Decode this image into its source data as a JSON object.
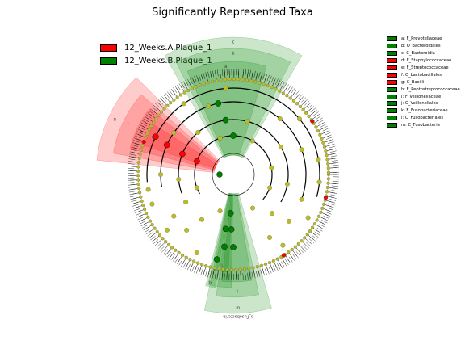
{
  "title": "Significantly Represented Taxa",
  "colors": {
    "enriched_a": "#ff0000",
    "enriched_b": "#008000",
    "neutral_node": "#bcbd22"
  },
  "groups": [
    {
      "label": "12_Weeks.A.Plaque_1",
      "color": "#ff0000"
    },
    {
      "label": "12_Weeks.B.Plaque_1",
      "color": "#008000"
    }
  ],
  "chart_data": {
    "type": "cladogram",
    "title": "Significantly Represented Taxa",
    "legend_position": "top-left",
    "taxa_legend_position": "top-right",
    "groups": [
      "12_Weeks.A.Plaque_1",
      "12_Weeks.B.Plaque_1"
    ],
    "taxa": [
      {
        "key": "a",
        "label": "a: F_Prevotellaceae",
        "group": "12_Weeks.B.Plaque_1",
        "color": "#008000"
      },
      {
        "key": "b",
        "label": "b: O_Bacteroidales",
        "group": "12_Weeks.B.Plaque_1",
        "color": "#008000"
      },
      {
        "key": "c",
        "label": "c: C_Bacteroidia",
        "group": "12_Weeks.B.Plaque_1",
        "color": "#008000"
      },
      {
        "key": "d",
        "label": "d: F_Staphylococcaceae",
        "group": "12_Weeks.A.Plaque_1",
        "color": "#ff0000"
      },
      {
        "key": "e",
        "label": "e: F_Streptococcaceae",
        "group": "12_Weeks.A.Plaque_1",
        "color": "#ff0000"
      },
      {
        "key": "f",
        "label": "f: O_Lactobacillales",
        "group": "12_Weeks.A.Plaque_1",
        "color": "#ff0000"
      },
      {
        "key": "g",
        "label": "g: C_Bacilli",
        "group": "12_Weeks.A.Plaque_1",
        "color": "#ff0000"
      },
      {
        "key": "h",
        "label": "h: F_Peptostreptococcaceae",
        "group": "12_Weeks.B.Plaque_1",
        "color": "#008000"
      },
      {
        "key": "i",
        "label": "i: F_Veillonellaceae",
        "group": "12_Weeks.B.Plaque_1",
        "color": "#008000"
      },
      {
        "key": "j",
        "label": "j: O_Veillonellales",
        "group": "12_Weeks.B.Plaque_1",
        "color": "#008000"
      },
      {
        "key": "k",
        "label": "k: F_Fusobacteriaceae",
        "group": "12_Weeks.B.Plaque_1",
        "color": "#008000"
      },
      {
        "key": "l",
        "label": "l: O_Fusobacteriales",
        "group": "12_Weeks.B.Plaque_1",
        "color": "#008000"
      },
      {
        "key": "m",
        "label": "m: C_Fusobacteria",
        "group": "12_Weeks.B.Plaque_1",
        "color": "#008000"
      }
    ],
    "sector_label": "p_Fusobacteria"
  }
}
